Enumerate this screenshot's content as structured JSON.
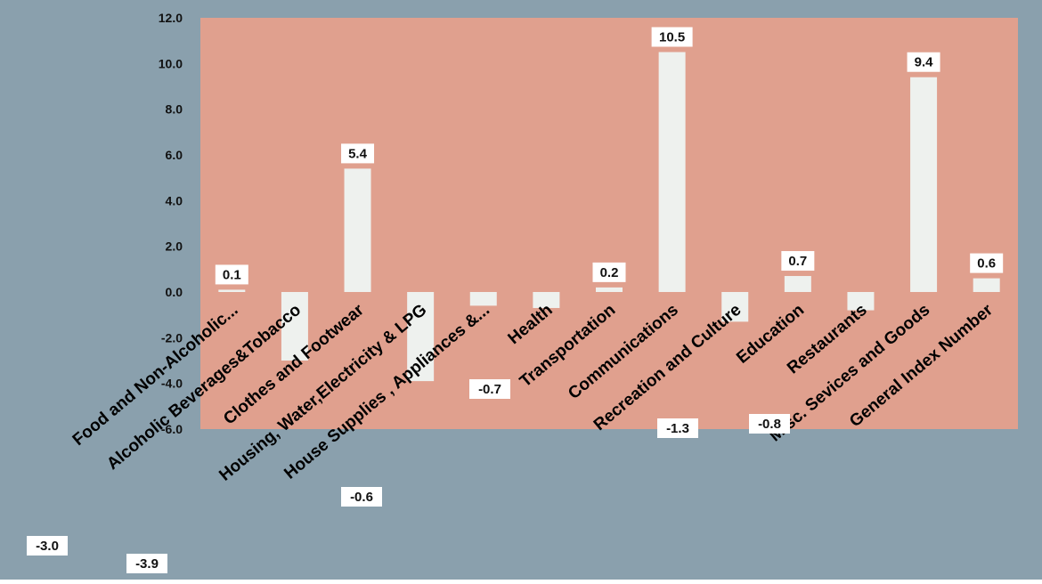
{
  "chart_data": {
    "type": "bar",
    "title": "",
    "xlabel": "",
    "ylabel": "",
    "categories": [
      "Food and Non-Alcoholic...",
      "Alcoholic Beverages&Tobacco",
      "Clothes and Footwear",
      "Housing, Water,Electricity & LPG",
      "House Supplies , Appliances &...",
      "Health",
      "Transportation",
      "Communications",
      "Recreation and Culture",
      "Education",
      "Restaurants",
      "Misc. Sevices and Goods",
      "General Index Number"
    ],
    "values": [
      0.1,
      -3.0,
      5.4,
      -3.9,
      -0.6,
      -0.7,
      0.2,
      10.5,
      -1.3,
      0.7,
      -0.8,
      9.4,
      0.6
    ],
    "value_labels": [
      "0.1",
      "-3.0",
      "5.4",
      "-3.9",
      "-0.6",
      "-0.7",
      "0.2",
      "10.5",
      "-1.3",
      "0.7",
      "-0.8",
      "9.4",
      "0.6"
    ],
    "ylim": [
      -6.0,
      12.0
    ],
    "y_ticks": [
      "12.0",
      "10.0",
      "8.0",
      "6.0",
      "4.0",
      "2.0",
      "0.0",
      "-2.0",
      "-4.0",
      "-6.0"
    ],
    "grid": false,
    "legend": "none"
  },
  "colors": {
    "page_background": "#ffffff",
    "outer_background": "#8aa0ad",
    "plot_background": "#e0a08e",
    "bar_fill": "#eef1ee",
    "label_box": "#ffffff",
    "text": "#111111"
  }
}
